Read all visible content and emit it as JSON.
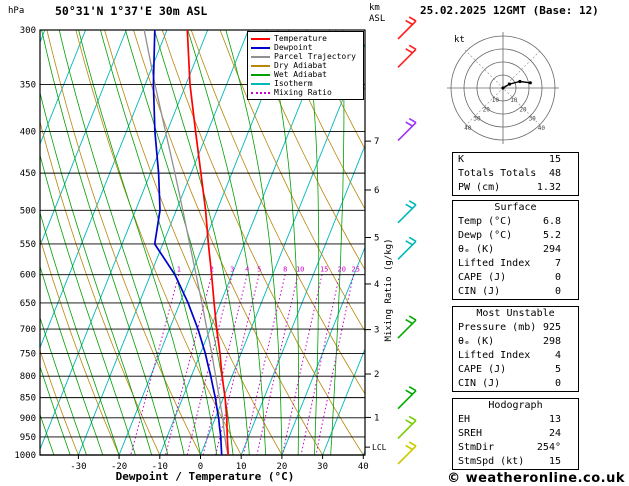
{
  "header": {
    "station": "50°31'N 1°37'E 30m ASL",
    "datetime": "25.02.2025 12GMT (Base: 12)"
  },
  "axes": {
    "pressure_label": "hPa",
    "altitude_label_line1": "km",
    "altitude_label_line2": "ASL",
    "x_label": "Dewpoint / Temperature (°C)",
    "mixing_label": "Mixing Ratio (g/kg)",
    "lcl_label": "LCL",
    "lcl_hPa": 978,
    "pressure_ticks": [
      300,
      350,
      400,
      450,
      500,
      550,
      600,
      650,
      700,
      750,
      800,
      850,
      900,
      950,
      1000
    ],
    "temp_ticks": [
      -30,
      -20,
      -10,
      0,
      10,
      20,
      30,
      40
    ],
    "km_ticks": [
      {
        "km": "7",
        "hPa": 411
      },
      {
        "km": "6",
        "hPa": 472
      },
      {
        "km": "5",
        "hPa": 540
      },
      {
        "km": "4",
        "hPa": 616
      },
      {
        "km": "3",
        "hPa": 701
      },
      {
        "km": "2",
        "hPa": 795
      },
      {
        "km": "1",
        "hPa": 899
      }
    ]
  },
  "legend": {
    "items": [
      {
        "label": "Temperature",
        "color": "#ff0000",
        "style": "solid"
      },
      {
        "label": "Dewpoint",
        "color": "#0000cc",
        "style": "solid"
      },
      {
        "label": "Parcel Trajectory",
        "color": "#909090",
        "style": "solid"
      },
      {
        "label": "Dry Adiabat",
        "color": "#b8860b",
        "style": "solid"
      },
      {
        "label": "Wet Adiabat",
        "color": "#00a000",
        "style": "solid"
      },
      {
        "label": "Isotherm",
        "color": "#00b8b8",
        "style": "solid"
      },
      {
        "label": "Mixing Ratio",
        "color": "#cc00cc",
        "style": "dotted"
      }
    ]
  },
  "chart_data": {
    "type": "skewt-logp-sounding",
    "pressure_range_hPa": [
      300,
      1000
    ],
    "temp_axis_range_C": [
      -30,
      40
    ],
    "pressure_hPa": [
      1000,
      975,
      950,
      925,
      900,
      875,
      850,
      825,
      800,
      775,
      750,
      700,
      650,
      600,
      550,
      500,
      450,
      400,
      350,
      300
    ],
    "temperature_C": [
      6.8,
      5.8,
      4.8,
      3.8,
      2.8,
      1.6,
      0.4,
      -1.0,
      -2.4,
      -3.8,
      -5.2,
      -8.4,
      -11.6,
      -15.0,
      -18.8,
      -22.8,
      -27.6,
      -33.0,
      -39.0,
      -45.0
    ],
    "dewpoint_C": [
      5.2,
      4.2,
      3.2,
      2.0,
      0.8,
      -0.6,
      -2.0,
      -3.6,
      -5.2,
      -7.0,
      -8.8,
      -13.0,
      -18.0,
      -24.0,
      -32.0,
      -34.0,
      -38.0,
      -43.0,
      -48.0,
      -53.0
    ],
    "parcel_C": [
      6.8,
      5.4,
      4.2,
      3.0,
      1.8,
      0.4,
      -1.0,
      -2.5,
      -4.0,
      -5.6,
      -7.2,
      -10.8,
      -14.6,
      -18.8,
      -23.4,
      -28.4,
      -34.0,
      -40.4,
      -47.6,
      -55.6
    ],
    "mixing_ratio_lines_gkg": [
      1,
      2,
      3,
      4,
      5,
      8,
      10,
      15,
      20,
      25
    ],
    "isotherm_step_C": 10,
    "dry_adiabat_step_C": 10,
    "wet_adiabat_step_C": 4,
    "wind_barbs": [
      {
        "hPa": 300,
        "color": "#ff2020"
      },
      {
        "hPa": 325,
        "color": "#ff2020"
      },
      {
        "hPa": 400,
        "color": "#9933ff"
      },
      {
        "hPa": 505,
        "color": "#00b8b8"
      },
      {
        "hPa": 560,
        "color": "#00b8b8"
      },
      {
        "hPa": 700,
        "color": "#00aa00"
      },
      {
        "hPa": 855,
        "color": "#00aa00"
      },
      {
        "hPa": 930,
        "color": "#77cc00"
      },
      {
        "hPa": 1000,
        "color": "#cccc00"
      }
    ],
    "hodograph": {
      "unit": "kt",
      "rings_kt": [
        10,
        20,
        30,
        40
      ],
      "trace_kt": [
        [
          0,
          0
        ],
        [
          5,
          3
        ],
        [
          13,
          5
        ],
        [
          21,
          4
        ]
      ]
    }
  },
  "indices": {
    "top": [
      {
        "label": "K",
        "value": "15"
      },
      {
        "label": "Totals Totals",
        "value": "48"
      },
      {
        "label": "PW (cm)",
        "value": "1.32"
      }
    ],
    "surface": {
      "title": "Surface",
      "rows": [
        {
          "label": "Temp (°C)",
          "value": "6.8"
        },
        {
          "label": "Dewp (°C)",
          "value": "5.2"
        },
        {
          "label": "θₑ (K)",
          "value": "294"
        },
        {
          "label": "Lifted Index",
          "value": "7"
        },
        {
          "label": "CAPE (J)",
          "value": "0"
        },
        {
          "label": "CIN (J)",
          "value": "0"
        }
      ]
    },
    "most_unstable": {
      "title": "Most Unstable",
      "rows": [
        {
          "label": "Pressure (mb)",
          "value": "925"
        },
        {
          "label": "θₑ (K)",
          "value": "298"
        },
        {
          "label": "Lifted Index",
          "value": "4"
        },
        {
          "label": "CAPE (J)",
          "value": "5"
        },
        {
          "label": "CIN (J)",
          "value": "0"
        }
      ]
    },
    "hodograph": {
      "title": "Hodograph",
      "rows": [
        {
          "label": "EH",
          "value": "13"
        },
        {
          "label": "SREH",
          "value": "24"
        },
        {
          "label": "StmDir",
          "value": "254°"
        },
        {
          "label": "StmSpd (kt)",
          "value": "15"
        }
      ]
    }
  },
  "colors": {
    "temperature": "#ff0000",
    "dewpoint": "#0000cc",
    "parcel": "#909090",
    "dry_adiabat": "#b8860b",
    "wet_adiabat": "#00a000",
    "isotherm": "#00b8b8",
    "mixing_ratio": "#cc00cc",
    "grid": "#000000"
  },
  "copyright": "© weatheronline.co.uk"
}
